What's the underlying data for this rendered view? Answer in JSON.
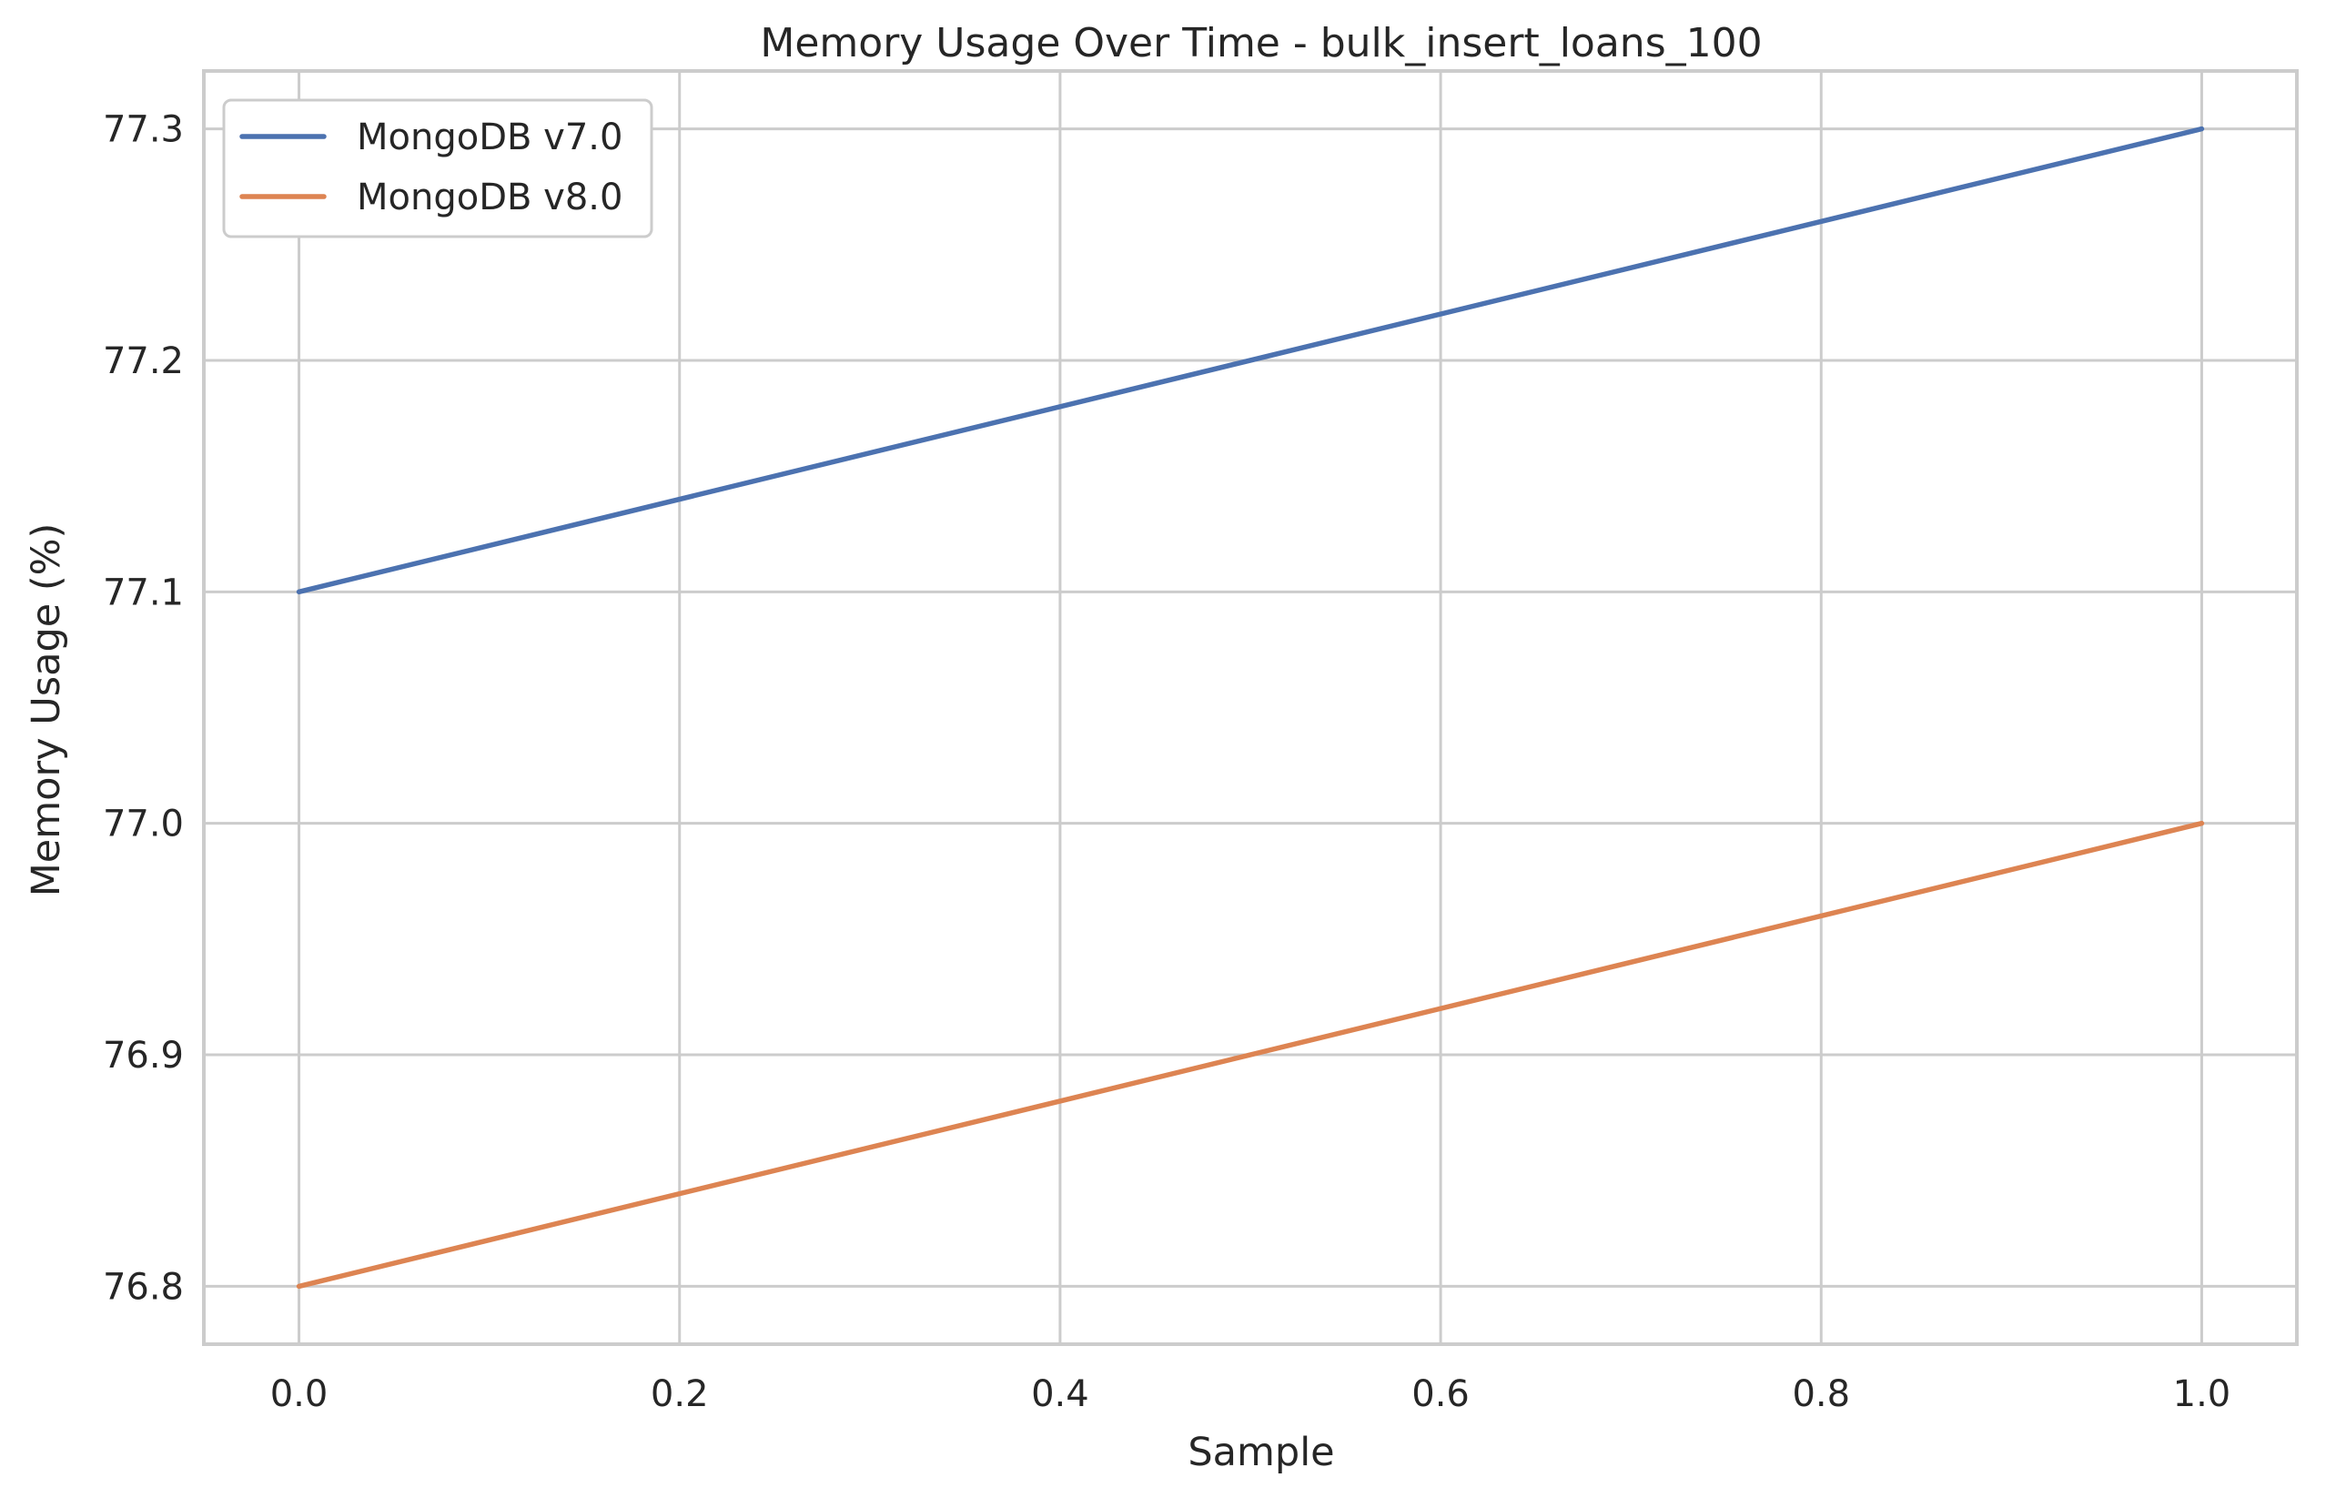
{
  "chart_data": {
    "type": "line",
    "title": "Memory Usage Over Time - bulk_insert_loans_100",
    "xlabel": "Sample",
    "ylabel": "Memory Usage (%)",
    "x": [
      0.0,
      1.0
    ],
    "xlim": [
      -0.05,
      1.05
    ],
    "ylim": [
      76.775,
      77.325
    ],
    "xticks": [
      0.0,
      0.2,
      0.4,
      0.6,
      0.8,
      1.0
    ],
    "xtick_labels": [
      "0.0",
      "0.2",
      "0.4",
      "0.6",
      "0.8",
      "1.0"
    ],
    "yticks": [
      76.8,
      76.9,
      77.0,
      77.1,
      77.2,
      77.3
    ],
    "ytick_labels": [
      "76.8",
      "76.9",
      "77.0",
      "77.1",
      "77.2",
      "77.3"
    ],
    "grid": true,
    "legend_position": "top-left",
    "series": [
      {
        "name": "MongoDB v7.0",
        "color": "#4c72b0",
        "values": [
          77.1,
          77.3
        ]
      },
      {
        "name": "MongoDB v8.0",
        "color": "#dd8452",
        "values": [
          76.8,
          77.0
        ]
      }
    ]
  }
}
